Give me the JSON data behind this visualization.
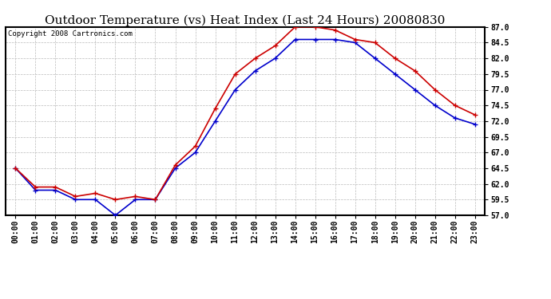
{
  "title": "Outdoor Temperature (vs) Heat Index (Last 24 Hours) 20080830",
  "copyright_text": "Copyright 2008 Cartronics.com",
  "x_labels": [
    "00:00",
    "01:00",
    "02:00",
    "03:00",
    "04:00",
    "05:00",
    "06:00",
    "07:00",
    "08:00",
    "09:00",
    "10:00",
    "11:00",
    "12:00",
    "13:00",
    "14:00",
    "15:00",
    "16:00",
    "17:00",
    "18:00",
    "19:00",
    "20:00",
    "21:00",
    "22:00",
    "23:00"
  ],
  "temp_data": [
    64.5,
    61.0,
    61.0,
    59.5,
    59.5,
    57.0,
    59.5,
    59.5,
    64.5,
    67.0,
    72.0,
    77.0,
    80.0,
    82.0,
    85.0,
    85.0,
    85.0,
    84.5,
    82.0,
    79.5,
    77.0,
    74.5,
    72.5,
    71.5
  ],
  "heat_index_data": [
    64.5,
    61.5,
    61.5,
    60.0,
    60.5,
    59.5,
    60.0,
    59.5,
    65.0,
    68.0,
    74.0,
    79.5,
    82.0,
    84.0,
    87.0,
    87.0,
    86.5,
    85.0,
    84.5,
    82.0,
    80.0,
    77.0,
    74.5,
    73.0
  ],
  "temp_color": "#0000CC",
  "heat_index_color": "#CC0000",
  "ylim_min": 57.0,
  "ylim_max": 87.0,
  "ytick_step": 2.5,
  "background_color": "#ffffff",
  "plot_bg_color": "#ffffff",
  "grid_color": "#bbbbbb",
  "title_fontsize": 11,
  "tick_fontsize": 7,
  "copyright_fontsize": 6.5
}
